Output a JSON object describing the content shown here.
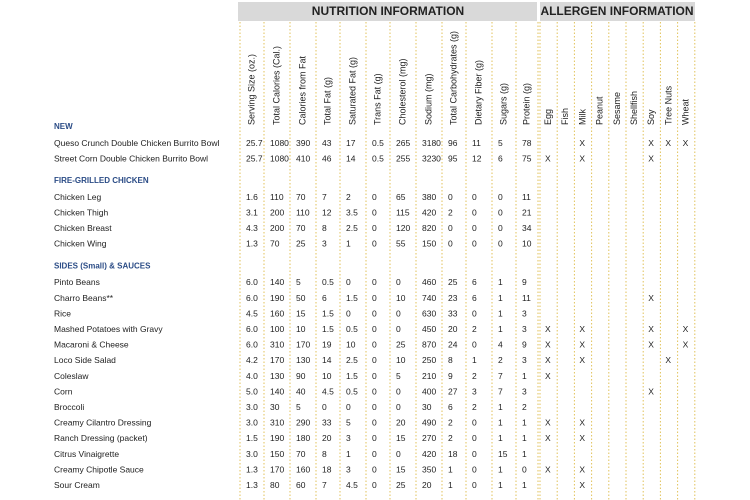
{
  "header": {
    "nutrition_title": "NUTRITION INFORMATION",
    "allergen_title": "ALLERGEN INFORMATION",
    "nutrition_columns": [
      "Serving Size (oz.)",
      "Total Calories (Cal.)",
      "Calories from Fat",
      "Total Fat (g)",
      "Saturated Fat (g)",
      "Trans Fat (g)",
      "Cholesterol (mg)",
      "Sodium (mg)",
      "Total Carbohydrates (g)",
      "Dietary Fiber (g)",
      "Sugars (g)",
      "Protein (g)"
    ],
    "allergen_columns": [
      "Egg",
      "Fish",
      "Milk",
      "Peanut",
      "Sesame",
      "Shellfish",
      "Soy",
      "Tree Nuts",
      "Wheat"
    ]
  },
  "sections": [
    {
      "title": "NEW",
      "rows": [
        {
          "name": "Queso Crunch Double Chicken Burrito Bowl",
          "values": [
            "25.7",
            "1080",
            "390",
            "43",
            "17",
            "0.5",
            "265",
            "3180",
            "96",
            "11",
            "5",
            "78"
          ],
          "allergens": [
            null,
            null,
            "X",
            null,
            null,
            null,
            "X",
            "X",
            "X"
          ]
        },
        {
          "name": "Street Corn Double Chicken Burrito Bowl",
          "values": [
            "25.7",
            "1080",
            "410",
            "46",
            "14",
            "0.5",
            "255",
            "3230",
            "95",
            "12",
            "6",
            "75"
          ],
          "allergens": [
            "X",
            null,
            "X",
            null,
            null,
            null,
            "X",
            null,
            null
          ]
        }
      ]
    },
    {
      "title": "FIRE-GRILLED CHICKEN",
      "rows": [
        {
          "name": "Chicken Leg",
          "values": [
            "1.6",
            "110",
            "70",
            "7",
            "2",
            "0",
            "65",
            "380",
            "0",
            "0",
            "0",
            "11"
          ],
          "allergens": [
            null,
            null,
            null,
            null,
            null,
            null,
            null,
            null,
            null
          ]
        },
        {
          "name": "Chicken Thigh",
          "values": [
            "3.1",
            "200",
            "110",
            "12",
            "3.5",
            "0",
            "115",
            "420",
            "2",
            "0",
            "0",
            "21"
          ],
          "allergens": [
            null,
            null,
            null,
            null,
            null,
            null,
            null,
            null,
            null
          ]
        },
        {
          "name": "Chicken Breast",
          "values": [
            "4.3",
            "200",
            "70",
            "8",
            "2.5",
            "0",
            "120",
            "820",
            "0",
            "0",
            "0",
            "34"
          ],
          "allergens": [
            null,
            null,
            null,
            null,
            null,
            null,
            null,
            null,
            null
          ]
        },
        {
          "name": "Chicken Wing",
          "values": [
            "1.3",
            "70",
            "25",
            "3",
            "1",
            "0",
            "55",
            "150",
            "0",
            "0",
            "0",
            "10"
          ],
          "allergens": [
            null,
            null,
            null,
            null,
            null,
            null,
            null,
            null,
            null
          ]
        }
      ]
    },
    {
      "title": "SIDES (Small) & SAUCES",
      "rows": [
        {
          "name": "Pinto Beans",
          "values": [
            "6.0",
            "140",
            "5",
            "0.5",
            "0",
            "0",
            "0",
            "460",
            "25",
            "6",
            "1",
            "9"
          ],
          "allergens": [
            null,
            null,
            null,
            null,
            null,
            null,
            null,
            null,
            null
          ]
        },
        {
          "name": "Charro Beans**",
          "values": [
            "6.0",
            "190",
            "50",
            "6",
            "1.5",
            "0",
            "10",
            "740",
            "23",
            "6",
            "1",
            "11"
          ],
          "allergens": [
            null,
            null,
            null,
            null,
            null,
            null,
            "X",
            null,
            null
          ]
        },
        {
          "name": "Rice",
          "values": [
            "4.5",
            "160",
            "15",
            "1.5",
            "0",
            "0",
            "0",
            "630",
            "33",
            "0",
            "1",
            "3"
          ],
          "allergens": [
            null,
            null,
            null,
            null,
            null,
            null,
            null,
            null,
            null
          ]
        },
        {
          "name": "Mashed Potatoes with Gravy",
          "values": [
            "6.0",
            "100",
            "10",
            "1.5",
            "0.5",
            "0",
            "0",
            "450",
            "20",
            "2",
            "1",
            "3"
          ],
          "allergens": [
            "X",
            null,
            "X",
            null,
            null,
            null,
            "X",
            null,
            "X"
          ]
        },
        {
          "name": "Macaroni & Cheese",
          "values": [
            "6.0",
            "310",
            "170",
            "19",
            "10",
            "0",
            "25",
            "870",
            "24",
            "0",
            "4",
            "9"
          ],
          "allergens": [
            "X",
            null,
            "X",
            null,
            null,
            null,
            "X",
            null,
            "X"
          ]
        },
        {
          "name": "Loco Side Salad",
          "values": [
            "4.2",
            "170",
            "130",
            "14",
            "2.5",
            "0",
            "10",
            "250",
            "8",
            "1",
            "2",
            "3"
          ],
          "allergens": [
            "X",
            null,
            "X",
            null,
            null,
            null,
            null,
            "X",
            null
          ]
        },
        {
          "name": "Coleslaw",
          "values": [
            "4.0",
            "130",
            "90",
            "10",
            "1.5",
            "0",
            "5",
            "210",
            "9",
            "2",
            "7",
            "1"
          ],
          "allergens": [
            "X",
            null,
            null,
            null,
            null,
            null,
            null,
            null,
            null
          ]
        },
        {
          "name": "Corn",
          "values": [
            "5.0",
            "140",
            "40",
            "4.5",
            "0.5",
            "0",
            "0",
            "400",
            "27",
            "3",
            "7",
            "3"
          ],
          "allergens": [
            null,
            null,
            null,
            null,
            null,
            null,
            "X",
            null,
            null
          ]
        },
        {
          "name": "Broccoli",
          "values": [
            "3.0",
            "30",
            "5",
            "0",
            "0",
            "0",
            "0",
            "30",
            "6",
            "2",
            "1",
            "2"
          ],
          "allergens": [
            null,
            null,
            null,
            null,
            null,
            null,
            null,
            null,
            null
          ]
        },
        {
          "name": "Creamy Cilantro Dressing",
          "values": [
            "3.0",
            "310",
            "290",
            "33",
            "5",
            "0",
            "20",
            "490",
            "2",
            "0",
            "1",
            "1"
          ],
          "allergens": [
            "X",
            null,
            "X",
            null,
            null,
            null,
            null,
            null,
            null
          ]
        },
        {
          "name": "Ranch Dressing (packet)",
          "values": [
            "1.5",
            "190",
            "180",
            "20",
            "3",
            "0",
            "15",
            "270",
            "2",
            "0",
            "1",
            "1"
          ],
          "allergens": [
            "X",
            null,
            "X",
            null,
            null,
            null,
            null,
            null,
            null
          ]
        },
        {
          "name": "Citrus Vinaigrette",
          "values": [
            "3.0",
            "150",
            "70",
            "8",
            "1",
            "0",
            "0",
            "420",
            "18",
            "0",
            "15",
            "1"
          ],
          "allergens": [
            null,
            null,
            null,
            null,
            null,
            null,
            null,
            null,
            null
          ]
        },
        {
          "name": "Creamy Chipotle Sauce",
          "values": [
            "1.3",
            "170",
            "160",
            "18",
            "3",
            "0",
            "15",
            "350",
            "1",
            "0",
            "1",
            "0"
          ],
          "allergens": [
            "X",
            null,
            "X",
            null,
            null,
            null,
            null,
            null,
            null
          ]
        },
        {
          "name": "Sour Cream",
          "values": [
            "1.3",
            "80",
            "60",
            "7",
            "4.5",
            "0",
            "25",
            "20",
            "1",
            "0",
            "1",
            "1"
          ],
          "allergens": [
            null,
            null,
            "X",
            null,
            null,
            null,
            null,
            null,
            null
          ]
        }
      ]
    }
  ]
}
